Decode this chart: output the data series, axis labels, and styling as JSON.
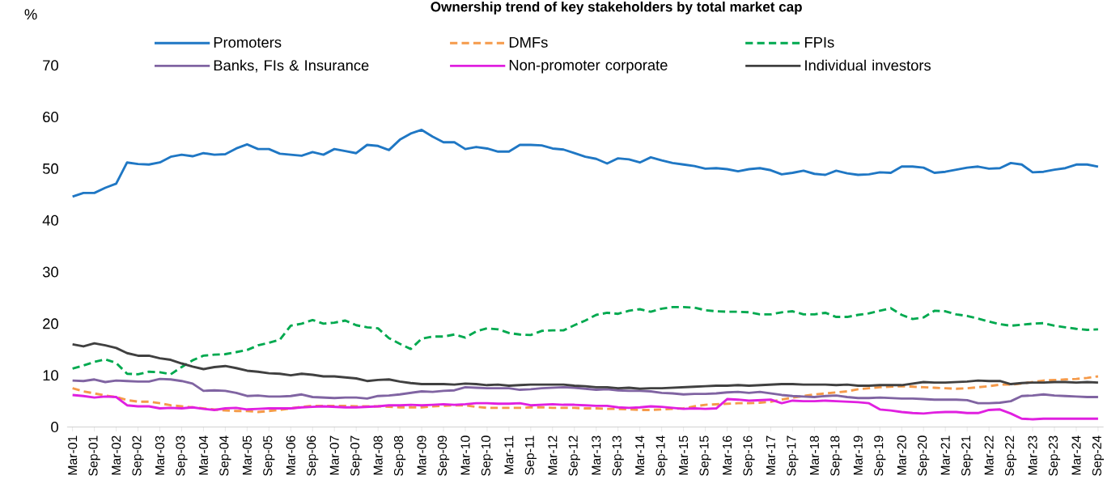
{
  "chart_data": {
    "type": "line",
    "title": "Ownership trend of key stakeholders by total market cap",
    "ylabel": "%",
    "categories": [
      "Mar-01",
      null,
      "Sep-01",
      null,
      "Mar-02",
      null,
      "Sep-02",
      null,
      "Mar-03",
      null,
      "Sep-03",
      null,
      "Mar-04",
      null,
      "Sep-04",
      null,
      "Mar-05",
      null,
      "Sep-05",
      null,
      "Mar-06",
      null,
      "Sep-06",
      null,
      "Mar-07",
      null,
      "Sep-07",
      null,
      "Mar-08",
      null,
      "Sep-08",
      null,
      "Mar-09",
      null,
      "Sep-09",
      null,
      "Mar-10",
      null,
      "Sep-10",
      null,
      "Mar-11",
      null,
      "Sep-11",
      null,
      "Mar-12",
      null,
      "Sep-12",
      null,
      "Mar-13",
      null,
      "Sep-13",
      null,
      "Mar-14",
      null,
      "Sep-14",
      null,
      "Mar-15",
      null,
      "Sep-15",
      null,
      "Mar-16",
      null,
      "Sep-16",
      null,
      "Mar-17",
      null,
      "Sep-17",
      null,
      "Mar-18",
      null,
      "Sep-18",
      null,
      "Mar-19",
      null,
      "Sep-19",
      null,
      "Mar-20",
      null,
      "Sep-20",
      null,
      "Mar-21",
      null,
      "Sep-21",
      null,
      "Mar-22",
      null,
      "Sep-22",
      null,
      "Mar-23",
      null,
      "Sep-23",
      null,
      "Mar-24",
      null,
      "Sep-24"
    ],
    "ylim": [
      0,
      70
    ],
    "yticks": [
      0,
      10,
      20,
      30,
      40,
      50,
      60,
      70
    ],
    "legend": "top",
    "series": [
      {
        "name": "Promoters",
        "color": "#1f77c4",
        "line_style": "solid",
        "values": [
          44.6,
          45.3,
          45.3,
          46.3,
          47.1,
          51.2,
          50.9,
          50.8,
          51.2,
          52.3,
          52.7,
          52.4,
          53.0,
          52.7,
          52.8,
          53.9,
          54.7,
          53.8,
          53.8,
          52.9,
          52.7,
          52.5,
          53.2,
          52.7,
          53.8,
          53.4,
          53.0,
          54.6,
          54.4,
          53.6,
          55.6,
          56.8,
          57.5,
          56.2,
          55.1,
          55.1,
          53.8,
          54.2,
          53.9,
          53.3,
          53.3,
          54.6,
          54.6,
          54.5,
          53.9,
          53.7,
          53.0,
          52.3,
          51.9,
          51.0,
          52.0,
          51.8,
          51.2,
          52.2,
          51.6,
          51.1,
          50.8,
          50.5,
          50.0,
          50.1,
          49.9,
          49.5,
          49.9,
          50.1,
          49.7,
          48.9,
          49.2,
          49.6,
          49.0,
          48.8,
          49.6,
          49.1,
          48.8,
          48.9,
          49.3,
          49.2,
          50.4,
          50.4,
          50.2,
          49.2,
          49.4,
          49.8,
          50.2,
          50.4,
          50.0,
          50.1,
          51.1,
          50.8,
          49.3,
          49.4,
          49.8,
          50.1,
          50.8,
          50.8,
          50.4
        ]
      },
      {
        "name": "DMFs",
        "color": "#f59a4a",
        "line_style": "dashed",
        "values": [
          7.5,
          6.9,
          6.5,
          6.1,
          5.8,
          5.2,
          4.9,
          4.9,
          4.6,
          4.2,
          4.0,
          3.8,
          3.6,
          3.4,
          3.2,
          3.1,
          3.1,
          2.9,
          3.1,
          3.3,
          3.6,
          3.9,
          4.1,
          4.1,
          4.1,
          4.1,
          4.0,
          4.0,
          4.0,
          3.9,
          3.8,
          3.8,
          3.8,
          4.0,
          4.1,
          4.2,
          4.2,
          3.9,
          3.7,
          3.7,
          3.7,
          3.7,
          3.8,
          3.8,
          3.7,
          3.7,
          3.7,
          3.6,
          3.6,
          3.5,
          3.5,
          3.4,
          3.3,
          3.3,
          3.4,
          3.5,
          3.6,
          4.0,
          4.3,
          4.4,
          4.5,
          4.6,
          4.6,
          4.7,
          4.9,
          5.3,
          5.7,
          6.0,
          6.3,
          6.5,
          6.7,
          6.9,
          7.3,
          7.5,
          7.7,
          7.8,
          7.9,
          7.8,
          7.7,
          7.6,
          7.5,
          7.4,
          7.5,
          7.7,
          7.9,
          8.2,
          8.2,
          8.4,
          8.7,
          9.0,
          9.1,
          9.2,
          9.3,
          9.5,
          9.8
        ]
      },
      {
        "name": "FPIs",
        "color": "#00a94f",
        "line_style": "dashed",
        "values": [
          11.3,
          11.9,
          12.6,
          13.1,
          12.4,
          10.3,
          10.2,
          10.7,
          10.6,
          10.2,
          11.6,
          12.9,
          13.8,
          14.0,
          14.1,
          14.5,
          14.9,
          15.8,
          16.3,
          16.9,
          19.6,
          20.0,
          20.7,
          20.0,
          20.2,
          20.6,
          19.7,
          19.3,
          19.1,
          17.2,
          16.1,
          15.1,
          17.1,
          17.5,
          17.5,
          17.9,
          17.3,
          18.5,
          19.1,
          18.9,
          18.2,
          17.9,
          17.8,
          18.6,
          18.7,
          18.7,
          19.7,
          20.6,
          21.7,
          22.1,
          21.9,
          22.5,
          22.8,
          22.3,
          22.9,
          23.2,
          23.2,
          23.1,
          22.6,
          22.4,
          22.3,
          22.3,
          22.2,
          21.8,
          21.8,
          22.2,
          22.4,
          21.8,
          21.8,
          22.1,
          21.3,
          21.3,
          21.7,
          22.0,
          22.5,
          23.0,
          21.7,
          20.9,
          21.2,
          22.5,
          22.4,
          21.8,
          21.5,
          21.0,
          20.4,
          19.9,
          19.6,
          19.8,
          20.0,
          20.1,
          19.6,
          19.3,
          19.0,
          18.8,
          18.9
        ]
      },
      {
        "name": "Banks, FIs & Insurance",
        "color": "#8064a2",
        "line_style": "solid",
        "values": [
          9.0,
          8.9,
          9.2,
          8.7,
          9.0,
          8.9,
          8.8,
          8.8,
          9.3,
          9.2,
          8.9,
          8.4,
          7.0,
          7.1,
          7.0,
          6.6,
          6.0,
          6.1,
          5.9,
          5.9,
          6.0,
          6.3,
          5.8,
          5.7,
          5.6,
          5.7,
          5.7,
          5.5,
          6.0,
          6.1,
          6.3,
          6.6,
          6.9,
          6.8,
          7.0,
          7.1,
          7.7,
          7.6,
          7.5,
          7.5,
          7.5,
          7.2,
          7.3,
          7.5,
          7.6,
          7.7,
          7.6,
          7.4,
          7.2,
          7.3,
          7.1,
          7.0,
          7.0,
          6.9,
          6.6,
          6.5,
          6.3,
          6.4,
          6.4,
          6.5,
          6.7,
          6.8,
          6.6,
          6.8,
          6.5,
          6.2,
          6.0,
          5.9,
          5.8,
          6.0,
          6.1,
          5.8,
          5.6,
          5.6,
          5.7,
          5.6,
          5.5,
          5.5,
          5.4,
          5.3,
          5.3,
          5.3,
          5.2,
          4.6,
          4.6,
          4.7,
          5.0,
          6.0,
          6.1,
          6.3,
          6.1,
          6.0,
          5.9,
          5.8,
          5.8
        ]
      },
      {
        "name": "Non-promoter corporate",
        "color": "#e020e0",
        "line_style": "solid",
        "values": [
          6.2,
          6.0,
          5.7,
          5.9,
          5.8,
          4.2,
          4.0,
          4.0,
          3.6,
          3.7,
          3.6,
          3.8,
          3.5,
          3.3,
          3.6,
          3.7,
          3.4,
          3.5,
          3.6,
          3.6,
          3.6,
          3.8,
          3.9,
          4.0,
          3.9,
          3.8,
          3.8,
          3.9,
          4.0,
          4.2,
          4.2,
          4.3,
          4.2,
          4.3,
          4.4,
          4.3,
          4.4,
          4.6,
          4.6,
          4.5,
          4.5,
          4.6,
          4.2,
          4.3,
          4.4,
          4.3,
          4.3,
          4.2,
          4.1,
          4.1,
          3.8,
          3.7,
          3.8,
          4.0,
          3.9,
          3.7,
          3.5,
          3.6,
          3.5,
          3.6,
          5.4,
          5.3,
          5.1,
          5.2,
          5.3,
          4.6,
          5.1,
          5.0,
          5.0,
          5.1,
          5.0,
          4.9,
          4.8,
          4.6,
          3.4,
          3.2,
          2.9,
          2.7,
          2.6,
          2.8,
          2.9,
          2.9,
          2.7,
          2.7,
          3.3,
          3.4,
          2.6,
          1.6,
          1.5,
          1.6,
          1.6,
          1.6,
          1.6,
          1.6,
          1.6
        ]
      },
      {
        "name": "Individual investors",
        "color": "#404040",
        "line_style": "solid",
        "values": [
          16.0,
          15.6,
          16.2,
          15.8,
          15.3,
          14.3,
          13.8,
          13.8,
          13.3,
          13.0,
          12.3,
          11.7,
          11.2,
          11.6,
          11.8,
          11.4,
          10.9,
          10.7,
          10.4,
          10.3,
          10.0,
          10.3,
          10.1,
          9.8,
          9.8,
          9.6,
          9.4,
          8.9,
          9.1,
          9.2,
          8.8,
          8.5,
          8.3,
          8.3,
          8.3,
          8.2,
          8.4,
          8.3,
          8.1,
          8.2,
          8.0,
          8.1,
          8.2,
          8.2,
          8.2,
          8.2,
          8.0,
          7.9,
          7.7,
          7.7,
          7.5,
          7.6,
          7.4,
          7.5,
          7.5,
          7.6,
          7.7,
          7.8,
          7.9,
          8.0,
          8.0,
          8.1,
          8.0,
          8.1,
          8.2,
          8.3,
          8.3,
          8.2,
          8.2,
          8.2,
          8.1,
          8.2,
          8.0,
          8.0,
          8.1,
          8.1,
          8.1,
          8.4,
          8.7,
          8.6,
          8.6,
          8.7,
          8.8,
          9.0,
          8.9,
          8.9,
          8.3,
          8.5,
          8.6,
          8.6,
          8.7,
          8.7,
          8.6,
          8.7,
          8.6
        ]
      }
    ]
  }
}
